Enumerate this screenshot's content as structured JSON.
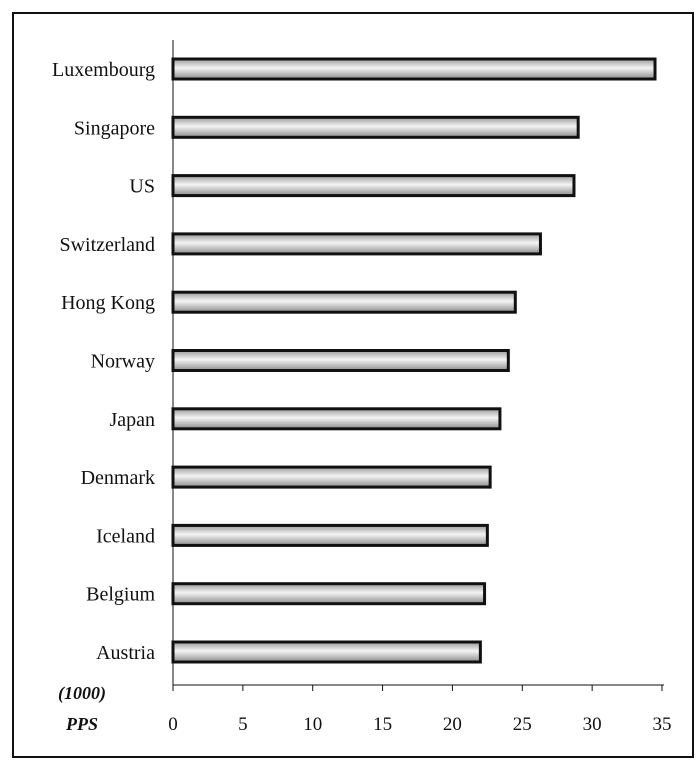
{
  "chart_data": {
    "type": "bar",
    "orientation": "horizontal",
    "categories": [
      "Luxembourg",
      "Singapore",
      "US",
      "Switzerland",
      "Hong Kong",
      "Norway",
      "Japan",
      "Denmark",
      "Iceland",
      "Belgium",
      "Austria"
    ],
    "values": [
      34.5,
      29,
      28.7,
      26.3,
      24.5,
      24,
      23.4,
      22.7,
      22.5,
      22.3,
      22
    ],
    "xlim": [
      0,
      35
    ],
    "xticks": [
      0,
      5,
      10,
      15,
      20,
      25,
      30,
      35
    ],
    "unit_label": [
      "(1000)",
      "PPS"
    ],
    "grid": false,
    "legend": "none"
  },
  "colors": {
    "bar_fill": "#d2d2d2",
    "bar_stroke": "#111111",
    "axis": "#111111"
  }
}
